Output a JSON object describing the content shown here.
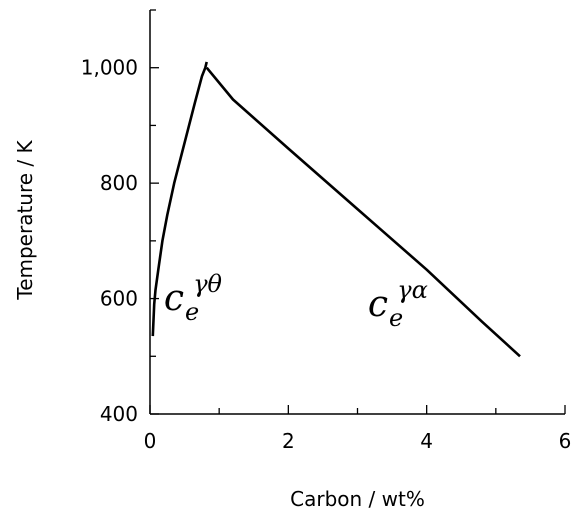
{
  "chart_data": {
    "type": "line",
    "title": "",
    "xlabel": "Carbon / wt%",
    "ylabel": "Temperature / K",
    "xlim": [
      0,
      6
    ],
    "ylim": [
      400,
      1100
    ],
    "x_ticks": [
      0,
      2,
      4,
      6
    ],
    "x_tick_labels": [
      "0",
      "2",
      "4",
      "6"
    ],
    "y_ticks": [
      400,
      600,
      800,
      1000
    ],
    "y_tick_labels": [
      "400",
      "600",
      "800",
      "1,000"
    ],
    "grid": false,
    "series": [
      {
        "label": {
          "base": "c",
          "sub": "e",
          "sup": "γθ"
        },
        "x": [
          0.04,
          0.06,
          0.08,
          0.12,
          0.18,
          0.25,
          0.35,
          0.5,
          0.65,
          0.75,
          0.8,
          0.82
        ],
        "y": [
          535,
          590,
          615,
          650,
          700,
          745,
          800,
          870,
          940,
          985,
          1000,
          1010
        ]
      },
      {
        "label": {
          "base": "c",
          "sub": "e",
          "sup": "γα"
        },
        "x": [
          0.82,
          1.2,
          2.0,
          3.0,
          4.0,
          4.8,
          5.35
        ],
        "y": [
          1000,
          945,
          860,
          755,
          650,
          560,
          500
        ]
      }
    ]
  }
}
